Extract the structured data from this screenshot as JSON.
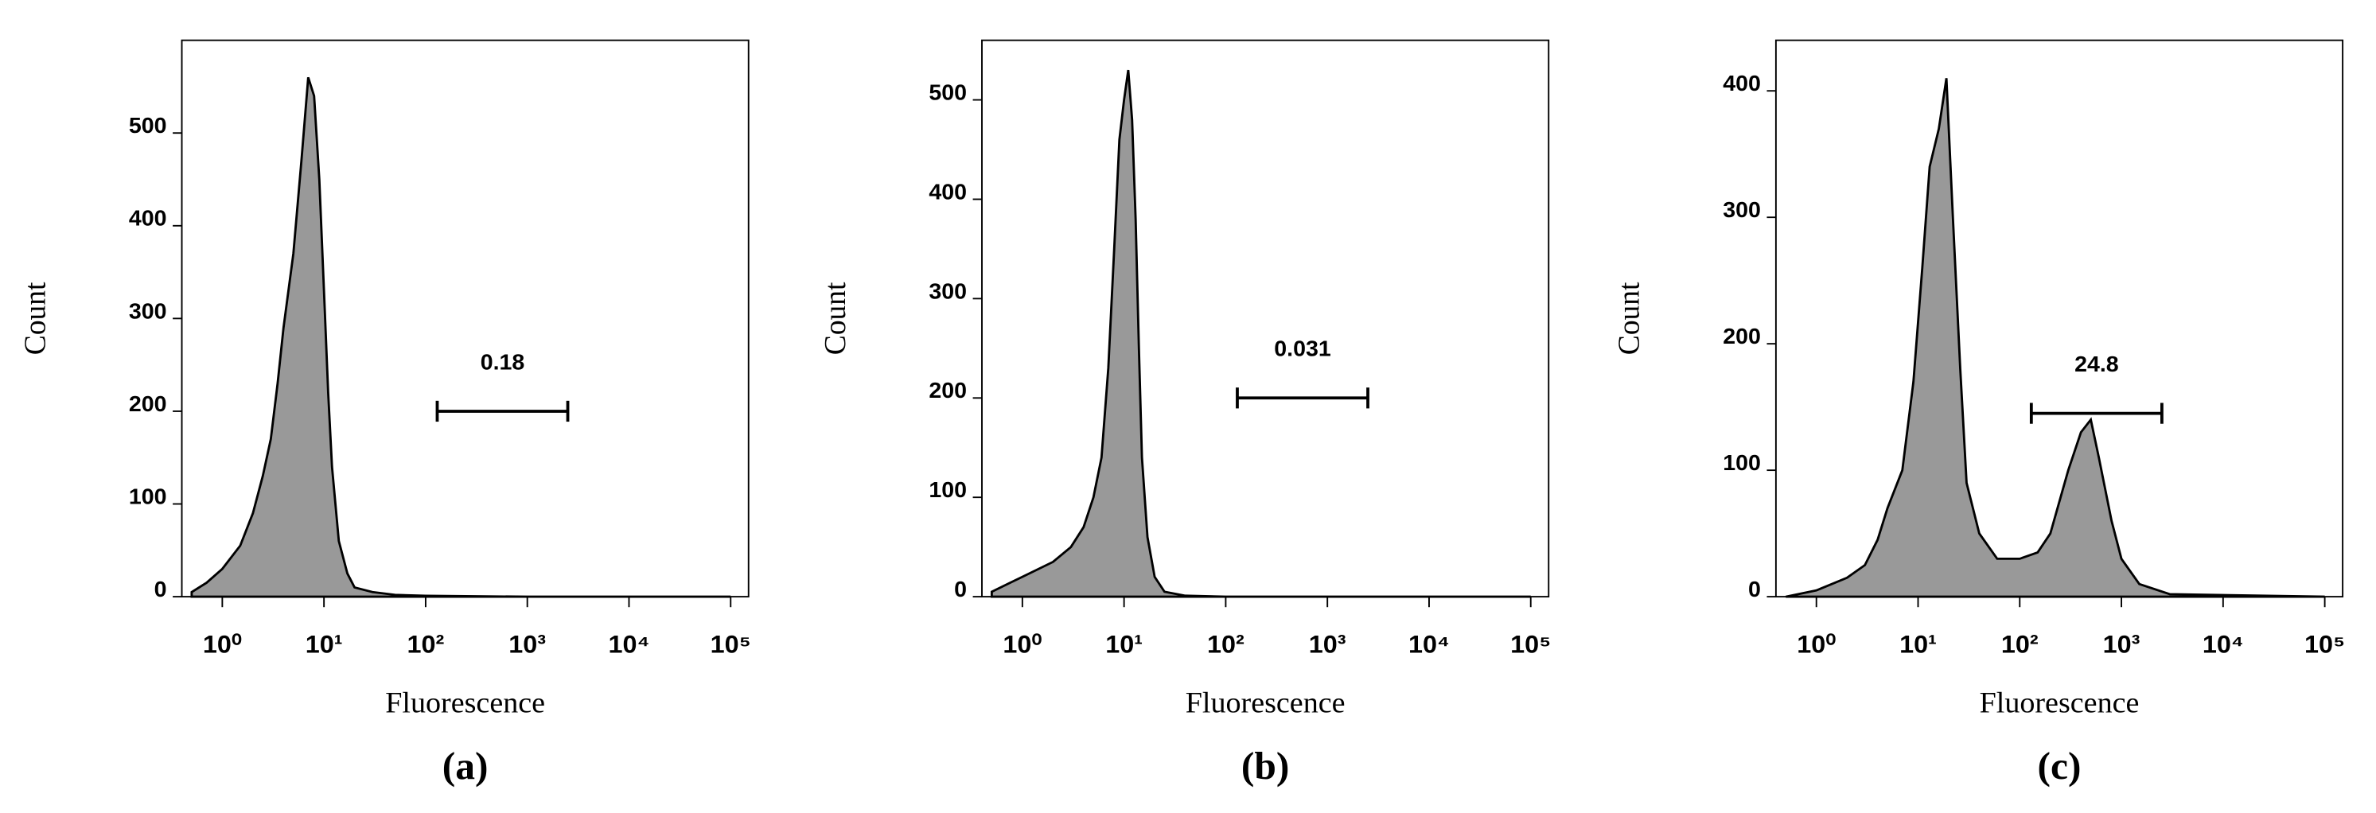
{
  "chart_data": [
    {
      "type": "area",
      "caption": "(a)",
      "xlabel": "Fluorescence",
      "ylabel": "Count",
      "xscale": "log",
      "color": "#999999",
      "xlim": [
        0.4,
        150000
      ],
      "xticks": [
        {
          "value": 1,
          "label": "10⁰"
        },
        {
          "value": 10,
          "label": "10¹"
        },
        {
          "value": 100,
          "label": "10²"
        },
        {
          "value": 1000,
          "label": "10³"
        },
        {
          "value": 10000,
          "label": "10⁴"
        },
        {
          "value": 100000,
          "label": "10⁵"
        }
      ],
      "ylim": [
        0,
        600
      ],
      "yticks": [
        0,
        100,
        200,
        300,
        400,
        500
      ],
      "x": [
        0.5,
        0.7,
        1,
        1.5,
        2,
        2.5,
        3,
        3.5,
        4,
        5,
        6,
        7,
        8,
        9,
        10,
        11,
        12,
        14,
        17,
        20,
        30,
        50,
        100,
        1000,
        100000
      ],
      "values": [
        5,
        15,
        30,
        55,
        90,
        130,
        170,
        230,
        290,
        370,
        470,
        560,
        540,
        450,
        330,
        220,
        140,
        60,
        25,
        10,
        5,
        2,
        1,
        0,
        0
      ],
      "gate": {
        "label": "0.18",
        "start": 130,
        "end": 2500,
        "y": 200
      }
    },
    {
      "type": "area",
      "caption": "(b)",
      "xlabel": "Fluorescence",
      "ylabel": "Count",
      "xscale": "log",
      "color": "#999999",
      "xlim": [
        0.4,
        150000
      ],
      "xticks": [
        {
          "value": 1,
          "label": "10⁰"
        },
        {
          "value": 10,
          "label": "10¹"
        },
        {
          "value": 100,
          "label": "10²"
        },
        {
          "value": 1000,
          "label": "10³"
        },
        {
          "value": 10000,
          "label": "10⁴"
        },
        {
          "value": 100000,
          "label": "10⁵"
        }
      ],
      "ylim": [
        0,
        560
      ],
      "yticks": [
        0,
        100,
        200,
        300,
        400,
        500
      ],
      "x": [
        0.5,
        1,
        2,
        3,
        4,
        5,
        6,
        7,
        8,
        9,
        10,
        11,
        12,
        13,
        14,
        15,
        17,
        20,
        25,
        40,
        100,
        100000
      ],
      "values": [
        5,
        20,
        35,
        50,
        70,
        100,
        140,
        230,
        350,
        460,
        500,
        530,
        480,
        380,
        250,
        140,
        60,
        20,
        5,
        1,
        0,
        0
      ],
      "gate": {
        "label": "0.031",
        "start": 130,
        "end": 2500,
        "y": 200
      }
    },
    {
      "type": "area",
      "caption": "(c)",
      "xlabel": "Fluorescence",
      "ylabel": "Count",
      "xscale": "log",
      "color": "#999999",
      "xlim": [
        0.4,
        150000
      ],
      "xticks": [
        {
          "value": 1,
          "label": "10⁰"
        },
        {
          "value": 10,
          "label": "10¹"
        },
        {
          "value": 100,
          "label": "10²"
        },
        {
          "value": 1000,
          "label": "10³"
        },
        {
          "value": 10000,
          "label": "10⁴"
        },
        {
          "value": 100000,
          "label": "10⁵"
        }
      ],
      "ylim": [
        0,
        440
      ],
      "yticks": [
        0,
        100,
        200,
        300,
        400
      ],
      "x": [
        0.5,
        1,
        2,
        3,
        4,
        5,
        7,
        9,
        11,
        13,
        16,
        19,
        22,
        26,
        30,
        40,
        60,
        100,
        150,
        200,
        300,
        400,
        500,
        600,
        800,
        1000,
        1500,
        3000,
        100000
      ],
      "values": [
        0,
        5,
        15,
        25,
        45,
        70,
        100,
        170,
        260,
        340,
        370,
        410,
        300,
        180,
        90,
        50,
        30,
        30,
        35,
        50,
        100,
        130,
        140,
        110,
        60,
        30,
        10,
        2,
        0
      ],
      "gate": {
        "label": "24.8",
        "start": 130,
        "end": 2500,
        "y": 145
      }
    }
  ]
}
